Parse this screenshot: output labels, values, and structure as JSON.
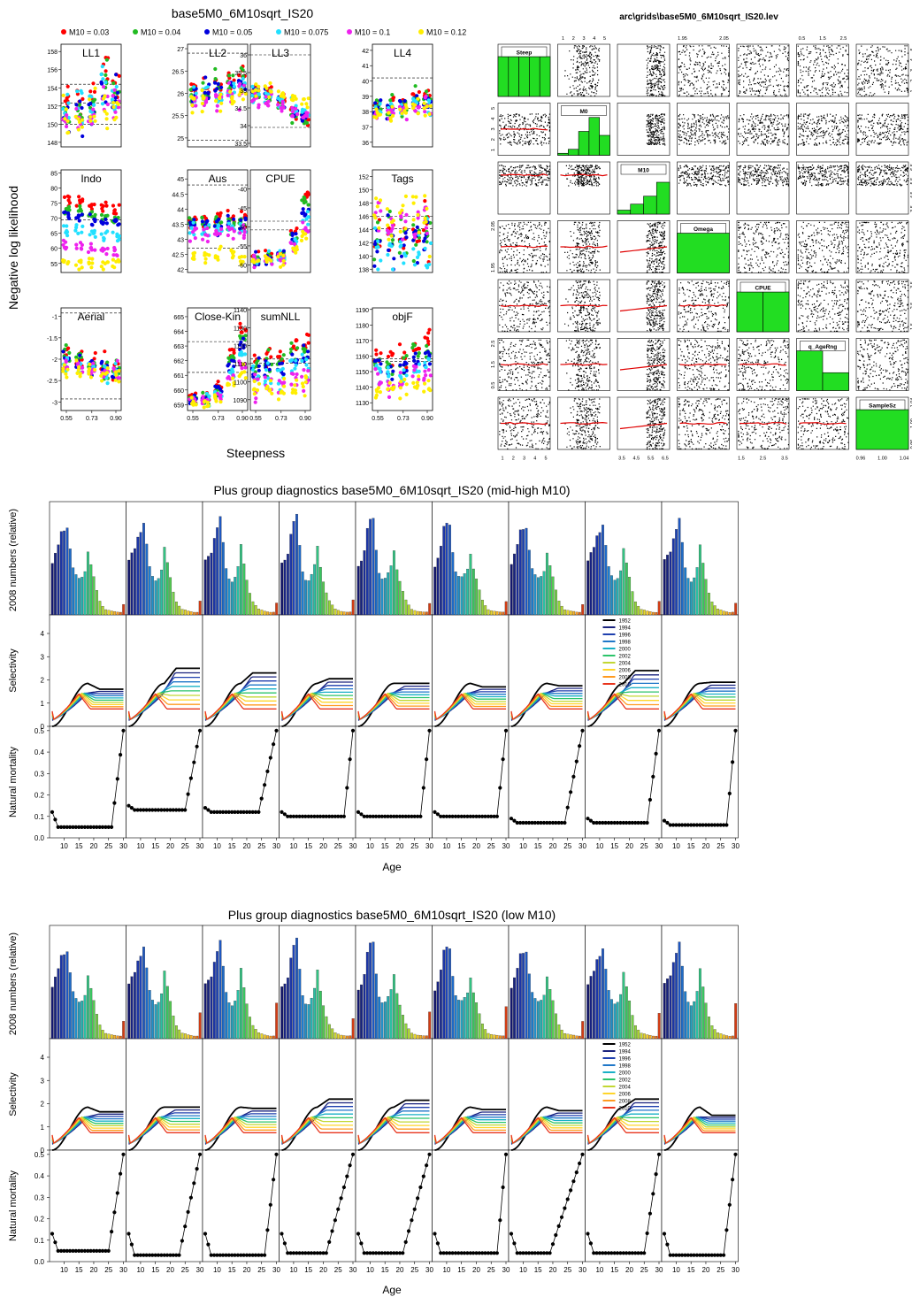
{
  "panel_a": {
    "title": "base5M0_6M10sqrt_IS20",
    "legend": [
      {
        "label": "M10 = 0.03",
        "color": "#ff0000"
      },
      {
        "label": "M10 = 0.04",
        "color": "#22bb22"
      },
      {
        "label": "M10 = 0.05",
        "color": "#0000dd"
      },
      {
        "label": "M10 = 0.075",
        "color": "#22e0ff"
      },
      {
        "label": "M10 = 0.1",
        "color": "#ee22ee"
      },
      {
        "label": "M10 = 0.12",
        "color": "#ffee00"
      }
    ],
    "ylabel": "Negative log likelihood",
    "xlabel": "Steepness",
    "x_ticks": [
      "0.55",
      "0.73",
      "0.90"
    ]
  },
  "panel_b": {
    "title": "arc\\grids\\base5M0_6M10sqrt_IS20.lev",
    "variables": [
      "Steep",
      "M0",
      "M10",
      "Omega",
      "CPUE",
      "q_AgeRng",
      "SampleSz"
    ],
    "top_axis_labels": [
      {
        "col": 1,
        "ticks": [
          "1",
          "2",
          "3",
          "4",
          "5"
        ]
      },
      {
        "col": 3,
        "ticks": [
          "1.95",
          "2.05"
        ]
      },
      {
        "col": 5,
        "ticks": [
          "0.5",
          "1.5",
          "2.5"
        ]
      }
    ],
    "bottom_axis_labels": [
      {
        "col": 0,
        "ticks": [
          "1",
          "2",
          "3",
          "4",
          "5"
        ]
      },
      {
        "col": 2,
        "ticks": [
          "3.5",
          "4.5",
          "5.5",
          "6.5"
        ]
      },
      {
        "col": 4,
        "ticks": [
          "1.5",
          "2.5",
          "3.5"
        ]
      },
      {
        "col": 6,
        "ticks": [
          "0.96",
          "1.00",
          "1.04"
        ]
      }
    ],
    "left_axis_labels": [
      {
        "row": 1,
        "ticks": [
          "1",
          "2",
          "3",
          "4",
          "5"
        ]
      },
      {
        "row": 3,
        "ticks": [
          "1.95",
          "2.05"
        ]
      },
      {
        "row": 5,
        "ticks": [
          "0.5",
          "1.5",
          "2.5"
        ]
      }
    ],
    "right_axis_labels": [
      {
        "row": 0,
        "ticks": [
          "1",
          "2",
          "3",
          "4",
          "5"
        ]
      },
      {
        "row": 2,
        "ticks": [
          "3.5",
          "4.5",
          "5.5",
          "6.5"
        ]
      },
      {
        "row": 4,
        "ticks": [
          "1.5",
          "2.5",
          "3.5"
        ]
      },
      {
        "row": 6,
        "ticks": [
          "0.96",
          "1.00",
          "1.04"
        ]
      }
    ]
  },
  "panel_c": {
    "title": "Plus group diagnostics base5M0_6M10sqrt_IS20 (mid-high M10)",
    "xlabel": "Age"
  },
  "panel_d": {
    "title": "Plus group diagnostics base5M0_6M10sqrt_IS20 (low M10)",
    "xlabel": "Age"
  },
  "diag_common": {
    "row_labels": [
      "2008 numbers (relative)",
      "Selectivity",
      "Natural mortality"
    ],
    "sel_yticks": [
      "0",
      "1",
      "2",
      "3",
      "4"
    ],
    "m_yticks": [
      "0.0",
      "0.1",
      "0.2",
      "0.3",
      "0.4",
      "0.5"
    ],
    "age_ticks": [
      "10",
      "15",
      "20",
      "25",
      "30"
    ],
    "years": [
      "1952",
      "1994",
      "1996",
      "1998",
      "2000",
      "2002",
      "2004",
      "2006",
      "2008",
      "2010"
    ],
    "year_colors": [
      "#000000",
      "#1a237e",
      "#1e3fae",
      "#1f77c8",
      "#19b0c6",
      "#2cc46a",
      "#c2d733",
      "#ffd52a",
      "#ff9a1f",
      "#e8341c"
    ]
  },
  "chart_data": [
    {
      "type": "scatter",
      "title": "base5M0_6M10sqrt_IS20",
      "xlabel": "Steepness",
      "ylabel": "Negative log likelihood",
      "x": [
        0.55,
        0.64,
        0.73,
        0.82,
        0.9
      ],
      "series": [
        {
          "name": "M10 = 0.03"
        },
        {
          "name": "M10 = 0.04"
        },
        {
          "name": "M10 = 0.05"
        },
        {
          "name": "M10 = 0.075"
        },
        {
          "name": "M10 = 0.1"
        },
        {
          "name": "M10 = 0.12"
        }
      ],
      "facets": [
        {
          "name": "LL1",
          "yticks": [
            148,
            150,
            152,
            154,
            156,
            158
          ],
          "ylim": [
            147.5,
            158.8
          ],
          "hlines": [
            154.4,
            152.3,
            150.0
          ]
        },
        {
          "name": "LL2",
          "yticks": [
            25.0,
            25.5,
            26.0,
            26.5,
            27.0
          ],
          "ylim": [
            24.8,
            27.1
          ],
          "hlines": [
            26.9,
            24.95
          ]
        },
        {
          "name": "LL3",
          "yticks": [
            33.5,
            34.0,
            34.5,
            35.0,
            35.5,
            36.0
          ],
          "ylim": [
            33.4,
            36.3
          ],
          "hlines": [
            36.0,
            33.95
          ]
        },
        {
          "name": "LL4",
          "yticks": [
            36,
            37,
            38,
            39,
            40,
            41,
            42
          ],
          "ylim": [
            35.7,
            42.4
          ],
          "hlines": [
            40.2,
            38.2
          ]
        },
        {
          "name": "Indo",
          "yticks": [
            55,
            60,
            65,
            70,
            75,
            80,
            85
          ],
          "ylim": [
            52,
            86
          ],
          "hlines": [
            69.5
          ]
        },
        {
          "name": "Aus",
          "yticks": [
            42.0,
            42.5,
            43.0,
            43.5,
            44.0,
            44.5,
            45.0
          ],
          "ylim": [
            41.9,
            45.3
          ],
          "hlines": [
            44.8,
            42.7
          ]
        },
        {
          "name": "CPUE",
          "yticks": [
            -60,
            -55,
            -50,
            -45,
            -40
          ],
          "ylim": [
            -62,
            -35
          ],
          "hlines": [
            -48.5,
            -50.8
          ]
        },
        {
          "name": "Tags",
          "yticks": [
            138,
            140,
            142,
            144,
            146,
            148,
            150,
            152
          ],
          "ylim": [
            137.5,
            153
          ],
          "hlines": [
            146.0,
            144.1
          ]
        },
        {
          "name": "Aerial",
          "yticks": [
            -3.0,
            -2.5,
            -2.0,
            -1.5,
            -1.0
          ],
          "ylim": [
            -3.2,
            -0.8
          ],
          "hlines": [
            -0.92,
            -2.93
          ]
        },
        {
          "name": "Close-Kin",
          "yticks": [
            659,
            660,
            661,
            662,
            663,
            664,
            665
          ],
          "ylim": [
            658.6,
            665.6
          ],
          "hlines": [
            663.3,
            661.2
          ]
        },
        {
          "name": "sumNLL",
          "yticks": [
            1090,
            1100,
            1110,
            1120,
            1130,
            1140
          ],
          "ylim": [
            1084,
            1141
          ],
          "hlines": [
            1112.6,
            1110.4
          ]
        },
        {
          "name": "objF",
          "yticks": [
            1130,
            1140,
            1150,
            1160,
            1170,
            1180,
            1190
          ],
          "ylim": [
            1125,
            1191
          ],
          "hlines": [
            1158.4,
            1156.6
          ]
        }
      ]
    },
    {
      "type": "scatter",
      "title": "arc\\grids\\base5M0_6M10sqrt_IS20.lev",
      "variables": [
        "Steep",
        "M0",
        "M10",
        "Omega",
        "CPUE",
        "q_AgeRng",
        "SampleSz"
      ],
      "histograms": {
        "Steep": [
          1,
          1,
          1,
          1,
          1
        ],
        "M0": [
          0.05,
          0.15,
          0.6,
          0.95,
          0.5
        ],
        "M10": [
          0.1,
          0.25,
          0.45,
          0.8
        ],
        "Omega": [
          1
        ],
        "CPUE": [
          1,
          1
        ],
        "q_AgeRng": [
          1,
          0.45
        ],
        "SampleSz": [
          1
        ]
      }
    },
    {
      "type": "bar",
      "title": "Plus group diagnostics base5M0_6M10sqrt_IS20 (mid-high M10)",
      "xlabel": "Age",
      "ylabel": "2008 numbers (relative)",
      "ages": [
        6,
        7,
        8,
        9,
        10,
        11,
        12,
        13,
        14,
        15,
        16,
        17,
        18,
        19,
        20,
        21,
        22,
        23,
        24,
        25,
        26,
        27,
        28,
        29,
        30
      ],
      "panels": 9,
      "plus_group_age": 30,
      "m_profile": [
        0.12,
        0.1,
        0.08,
        0.05,
        0.05,
        0.05,
        0.05,
        0.05,
        0.05,
        0.05,
        0.05,
        0.05,
        0.05,
        0.05,
        0.05,
        0.05,
        0.05,
        0.05,
        0.05,
        0.05,
        0.05,
        0.12,
        0.25,
        0.38,
        0.5
      ],
      "selectivity_plateau_1952": [
        1.6,
        2.5,
        2.3,
        2.05,
        1.85,
        1.7,
        1.75,
        2.4,
        1.9
      ]
    },
    {
      "type": "bar",
      "title": "Plus group diagnostics base5M0_6M10sqrt_IS20 (low M10)",
      "xlabel": "Age",
      "ylabel": "2008 numbers (relative)",
      "ages": [
        6,
        7,
        8,
        9,
        10,
        11,
        12,
        13,
        14,
        15,
        16,
        17,
        18,
        19,
        20,
        21,
        22,
        23,
        24,
        25,
        26,
        27,
        28,
        29,
        30
      ],
      "panels": 9,
      "plus_group_age": 30,
      "m_profile": [
        0.13,
        0.1,
        0.07,
        0.05,
        0.05,
        0.05,
        0.05,
        0.05,
        0.05,
        0.05,
        0.05,
        0.05,
        0.05,
        0.05,
        0.05,
        0.05,
        0.05,
        0.05,
        0.05,
        0.05,
        0.05,
        0.12,
        0.25,
        0.38,
        0.5
      ],
      "selectivity_plateau_1952": [
        1.65,
        1.85,
        1.8,
        2.2,
        2.15,
        1.75,
        1.7,
        2.2,
        1.5
      ]
    }
  ]
}
